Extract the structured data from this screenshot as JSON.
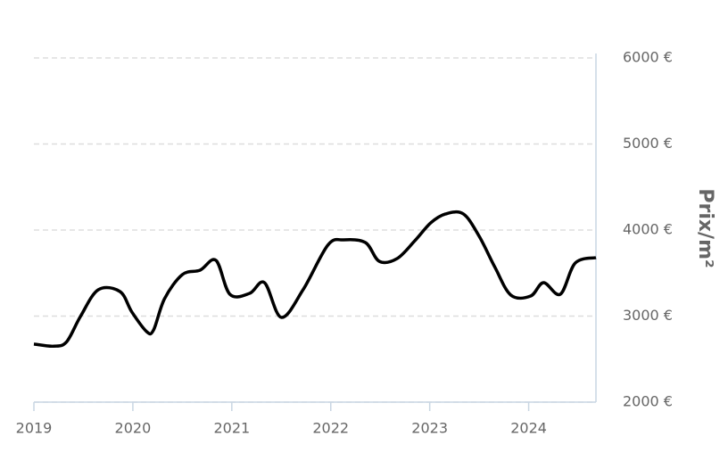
{
  "chart_data": {
    "type": "line",
    "y_axis_label": "Prix/m²",
    "x": [
      2019.0,
      2019.2,
      2019.33,
      2019.47,
      2019.65,
      2019.87,
      2019.99,
      2020.14,
      2020.21,
      2020.32,
      2020.5,
      2020.68,
      2020.84,
      2020.98,
      2021.18,
      2021.33,
      2021.5,
      2021.72,
      2021.97,
      2022.13,
      2022.35,
      2022.49,
      2022.67,
      2022.85,
      2023.01,
      2023.16,
      2023.34,
      2023.5,
      2023.66,
      2023.82,
      2024.02,
      2024.15,
      2024.32,
      2024.47,
      2024.68
    ],
    "series": [
      {
        "color": "#000000",
        "values": [
          2675,
          2650,
          2700,
          2995,
          3306,
          3285,
          3047,
          2819,
          2840,
          3202,
          3482,
          3534,
          3648,
          3254,
          3264,
          3389,
          2985,
          3306,
          3824,
          3886,
          3855,
          3637,
          3668,
          3876,
          4083,
          4187,
          4187,
          3927,
          3565,
          3244,
          3233,
          3389,
          3254,
          3616,
          3679
        ]
      }
    ],
    "xlim": [
      2019,
      2024.68
    ],
    "xticks": [
      2019,
      2020,
      2021,
      2022,
      2023,
      2024
    ],
    "ylim": [
      2000,
      6000
    ],
    "yticks": [
      {
        "value": 2000,
        "label": "2000 €"
      },
      {
        "value": 3000,
        "label": "3000 €"
      },
      {
        "value": 4000,
        "label": "4000 €"
      },
      {
        "value": 5000,
        "label": "5000 €"
      },
      {
        "value": 6000,
        "label": "6000 €"
      }
    ],
    "grid": true
  }
}
